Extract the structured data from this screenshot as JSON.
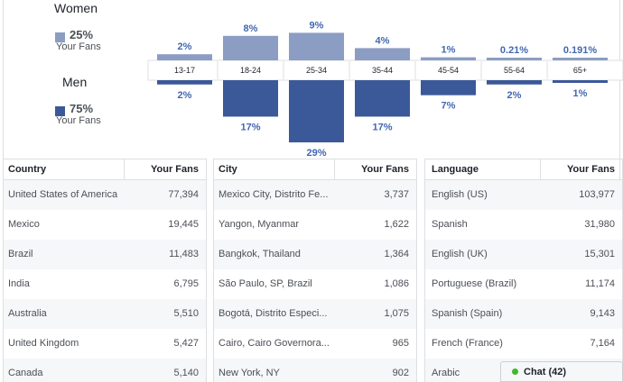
{
  "legend": {
    "women": {
      "title": "Women",
      "percent": "25%",
      "subtitle": "Your Fans",
      "color": "#8b9dc3"
    },
    "men": {
      "title": "Men",
      "percent": "75%",
      "subtitle": "Your Fans",
      "color": "#3b5998"
    }
  },
  "chart_data": {
    "type": "bar",
    "categories": [
      "13-17",
      "18-24",
      "25-34",
      "35-44",
      "45-54",
      "55-64",
      "65+"
    ],
    "series": [
      {
        "name": "Women",
        "values": [
          2,
          8,
          9,
          4,
          1,
          0.21,
          0.191
        ],
        "labels": [
          "2%",
          "8%",
          "9%",
          "4%",
          "1%",
          "0.21%",
          "0.191%"
        ],
        "color": "#8b9dc3"
      },
      {
        "name": "Men",
        "values": [
          2,
          17,
          29,
          17,
          7,
          2,
          1
        ],
        "labels": [
          "2%",
          "17%",
          "29%",
          "17%",
          "7%",
          "2%",
          "1%"
        ],
        "color": "#3b5998"
      }
    ]
  },
  "tables": {
    "country": {
      "header": "Country",
      "value_header": "Your Fans",
      "rows": [
        {
          "name": "United States of America",
          "value": "77,394"
        },
        {
          "name": "Mexico",
          "value": "19,445"
        },
        {
          "name": "Brazil",
          "value": "11,483"
        },
        {
          "name": "India",
          "value": "6,795"
        },
        {
          "name": "Australia",
          "value": "5,510"
        },
        {
          "name": "United Kingdom",
          "value": "5,427"
        },
        {
          "name": "Canada",
          "value": "5,140"
        }
      ]
    },
    "city": {
      "header": "City",
      "value_header": "Your Fans",
      "rows": [
        {
          "name": "Mexico City, Distrito Fe...",
          "value": "3,737"
        },
        {
          "name": "Yangon, Myanmar",
          "value": "1,622"
        },
        {
          "name": "Bangkok, Thailand",
          "value": "1,364"
        },
        {
          "name": "São Paulo, SP, Brazil",
          "value": "1,086"
        },
        {
          "name": "Bogotá, Distrito Especi...",
          "value": "1,075"
        },
        {
          "name": "Cairo, Cairo Governora...",
          "value": "965"
        },
        {
          "name": "New York, NY",
          "value": "902"
        }
      ]
    },
    "language": {
      "header": "Language",
      "value_header": "Your Fans",
      "rows": [
        {
          "name": "English (US)",
          "value": "103,977"
        },
        {
          "name": "Spanish",
          "value": "31,980"
        },
        {
          "name": "English (UK)",
          "value": "15,301"
        },
        {
          "name": "Portuguese (Brazil)",
          "value": "11,174"
        },
        {
          "name": "Spanish (Spain)",
          "value": "9,143"
        },
        {
          "name": "French (France)",
          "value": "7,164"
        },
        {
          "name": "Arabic",
          "value": ""
        }
      ]
    }
  },
  "chat": {
    "label": "Chat (42)",
    "status_color": "#42b72a"
  }
}
